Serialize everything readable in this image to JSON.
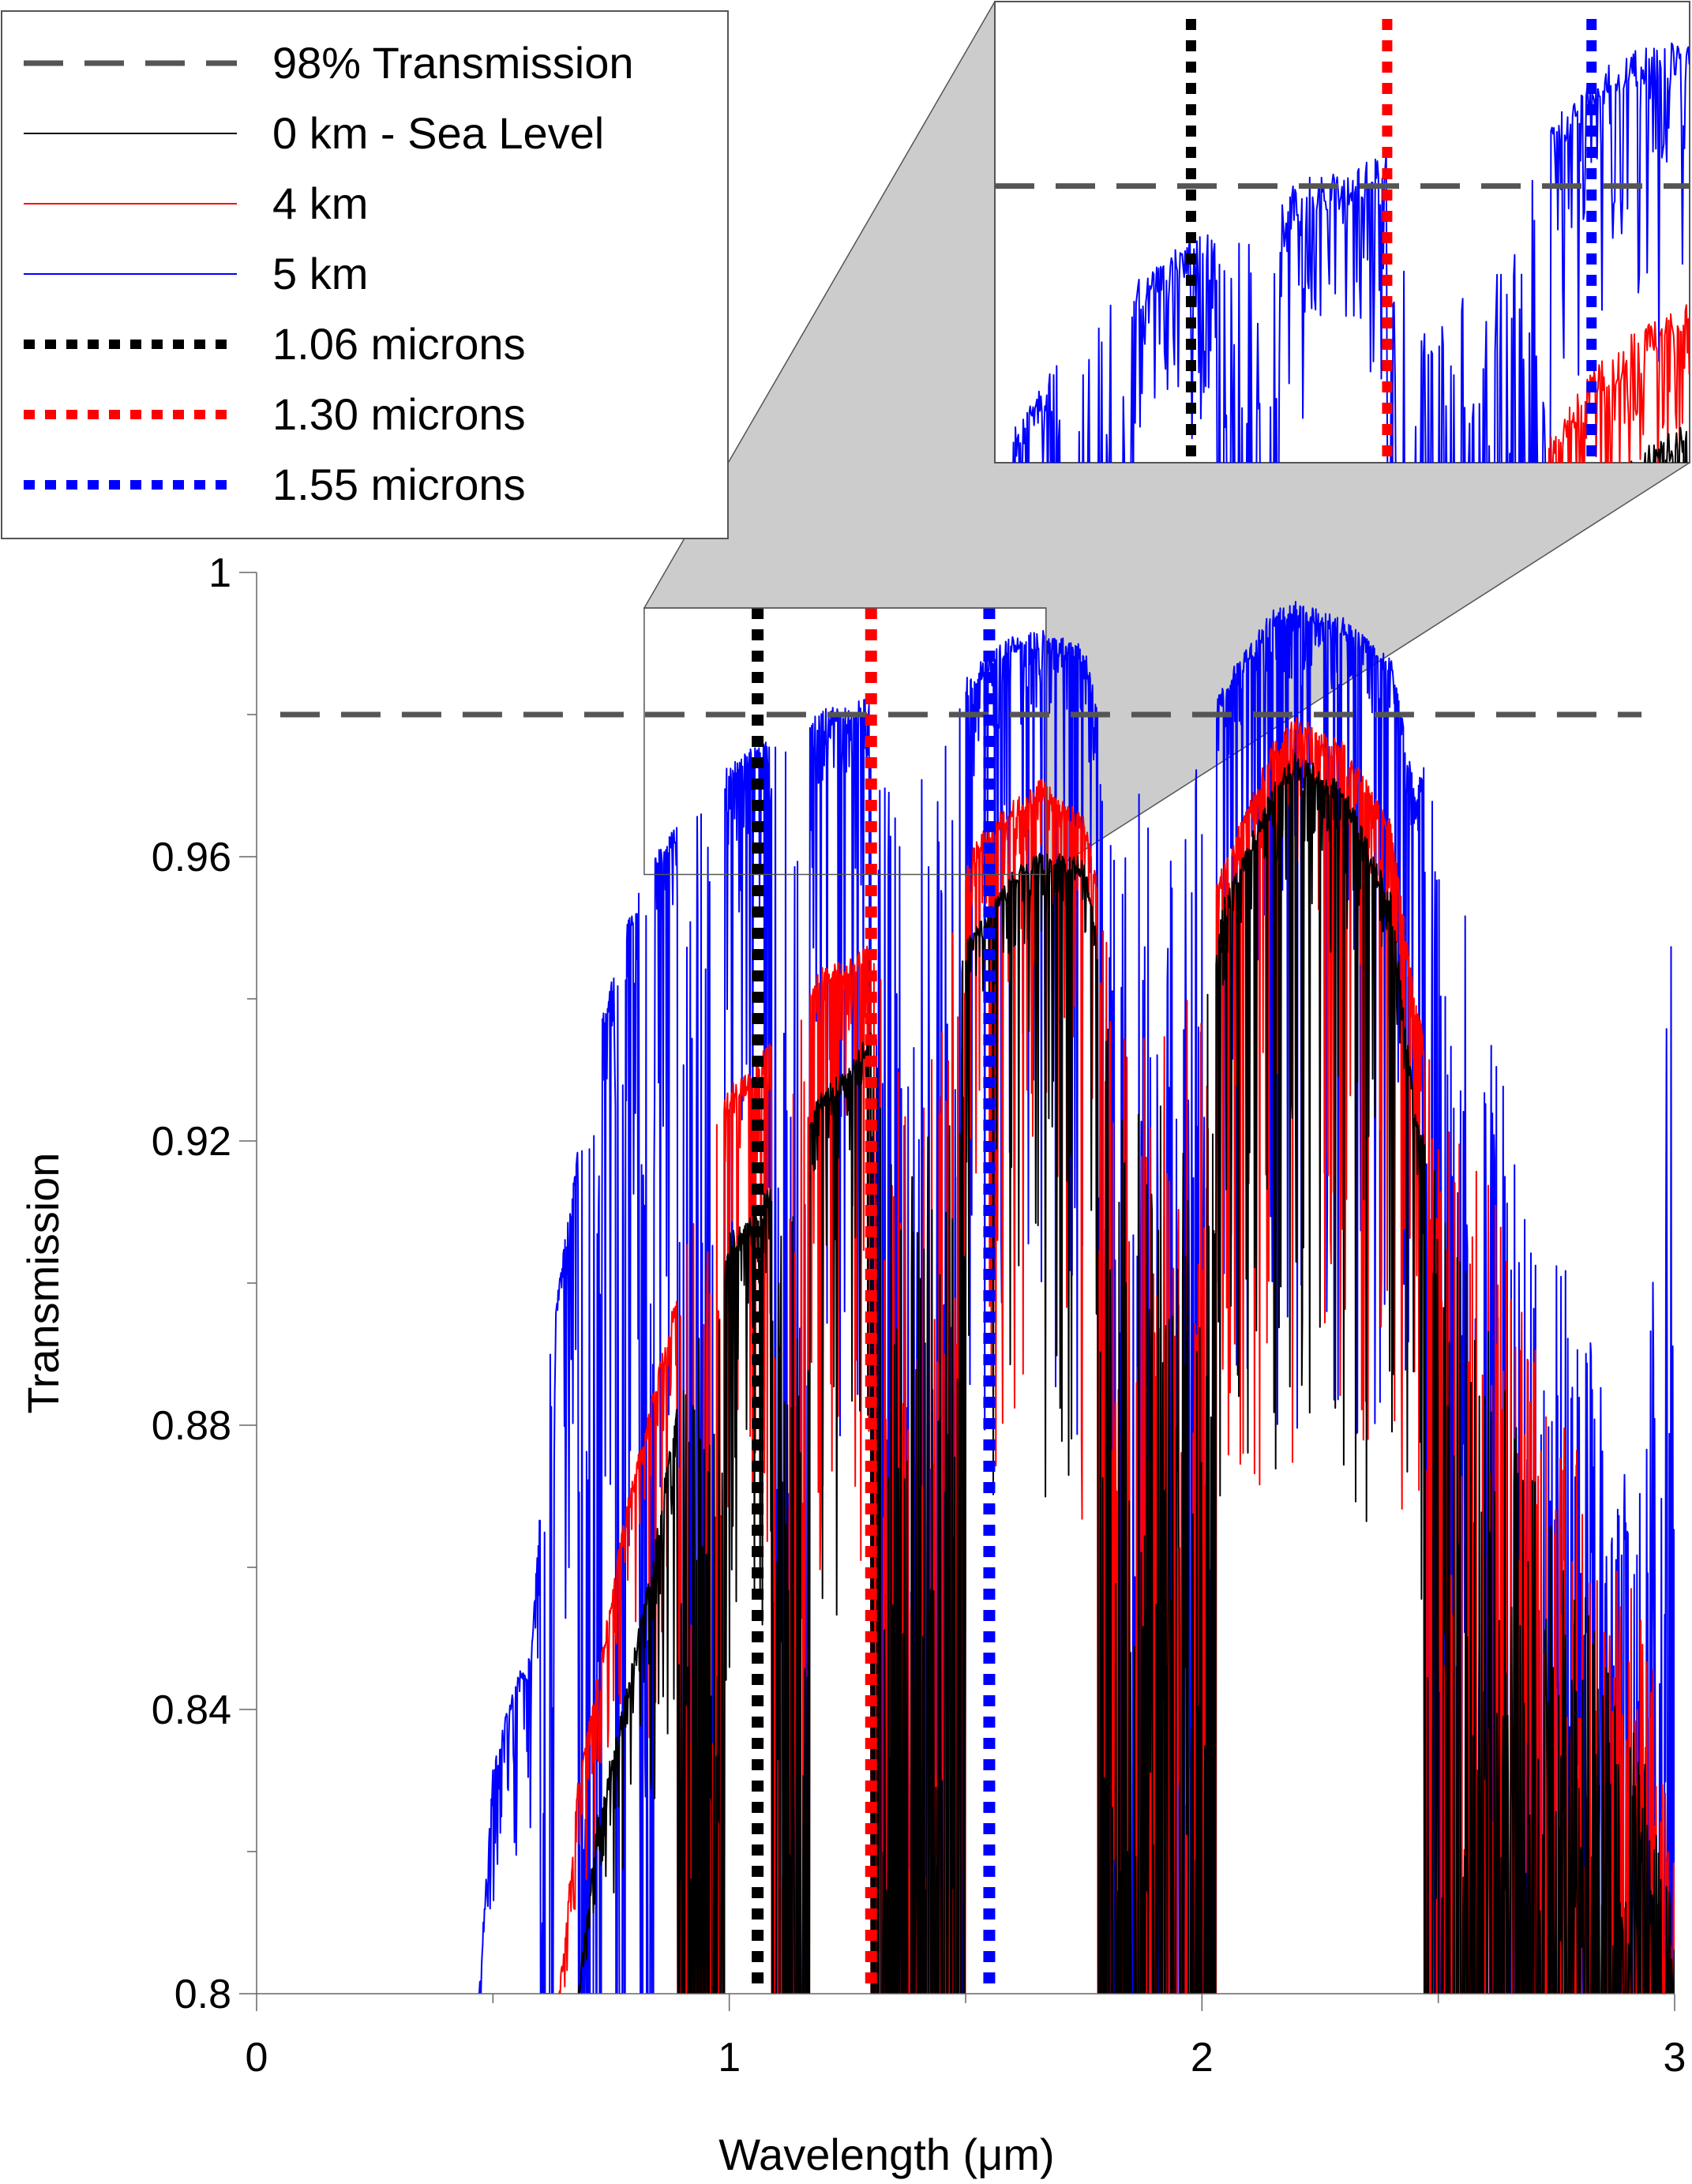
{
  "chart_data": {
    "type": "line",
    "xlabel": "Wavelength (μm)",
    "ylabel": "Transmission",
    "xlim": [
      0,
      3
    ],
    "ylim": [
      0.8,
      1.0
    ],
    "x_ticks": [
      0,
      1,
      2,
      3
    ],
    "x_tick_labels": [
      "0",
      "1",
      "2",
      "3"
    ],
    "y_ticks": [
      0.8,
      0.84,
      0.88,
      0.92,
      0.96,
      1.0
    ],
    "y_tick_labels": [
      "0.8",
      "0.84",
      "0.88",
      "0.92",
      "0.96",
      "1"
    ],
    "legend_position": "top-left",
    "legend": [
      {
        "label": "98% Transmission",
        "color": "#555555",
        "style": "dashed"
      },
      {
        "label": "0 km - Sea Level",
        "color": "#000000",
        "style": "solid"
      },
      {
        "label": "4 km",
        "color": "#ff0000",
        "style": "solid"
      },
      {
        "label": "5 km",
        "color": "#0000ff",
        "style": "solid"
      },
      {
        "label": "1.06 microns",
        "color": "#000000",
        "style": "dotted"
      },
      {
        "label": "1.30 microns",
        "color": "#ff0000",
        "style": "dotted"
      },
      {
        "label": "1.55 microns",
        "color": "#0000ff",
        "style": "dotted"
      }
    ],
    "reference_line": {
      "y": 0.98,
      "label": "98% Transmission"
    },
    "marker_lines": [
      {
        "x": 1.06,
        "label": "1.06 microns",
        "color": "#000000"
      },
      {
        "x": 1.3,
        "label": "1.30 microns",
        "color": "#ff0000"
      },
      {
        "x": 1.55,
        "label": "1.55 microns",
        "color": "#0000ff"
      }
    ],
    "inset": {
      "xlim": [
        0.82,
        1.67
      ],
      "ylim": [
        0.9575,
        0.995
      ]
    },
    "series": [
      {
        "name": "5 km",
        "color": "#0000ff",
        "envelope": [
          [
            0.47,
            0.8
          ],
          [
            0.5,
            0.832
          ],
          [
            0.55,
            0.845
          ],
          [
            0.58,
            0.848
          ],
          [
            0.62,
            0.89
          ],
          [
            0.67,
            0.915
          ],
          [
            0.72,
            0.935
          ],
          [
            0.77,
            0.948
          ],
          [
            0.82,
            0.958
          ],
          [
            0.87,
            0.963
          ],
          [
            0.9,
            0.966
          ],
          [
            0.95,
            0.97
          ],
          [
            1.0,
            0.973
          ],
          [
            1.04,
            0.975
          ],
          [
            1.1,
            0.977
          ],
          [
            1.15,
            0.978
          ],
          [
            1.2,
            0.981
          ],
          [
            1.25,
            0.981
          ],
          [
            1.3,
            0.983
          ],
          [
            1.35,
            0.968
          ],
          [
            1.45,
            0.975
          ],
          [
            1.5,
            0.985
          ],
          [
            1.55,
            0.989
          ],
          [
            1.6,
            0.991
          ],
          [
            1.66,
            0.992
          ],
          [
            1.75,
            0.99
          ],
          [
            1.8,
            0.975
          ],
          [
            1.95,
            0.97
          ],
          [
            2.05,
            0.985
          ],
          [
            2.15,
            0.995
          ],
          [
            2.2,
            0.996
          ],
          [
            2.3,
            0.994
          ],
          [
            2.4,
            0.988
          ],
          [
            2.45,
            0.97
          ],
          [
            2.52,
            0.98
          ],
          [
            2.58,
            0.94
          ],
          [
            2.93,
            0.87
          ],
          [
            3.0,
            0.96
          ]
        ],
        "absorption_bands": [
          [
            0.6,
            0.63
          ],
          [
            0.68,
            0.73
          ],
          [
            0.76,
            0.78
          ],
          [
            0.81,
            0.84
          ],
          [
            0.89,
            0.99
          ],
          [
            1.09,
            1.17
          ],
          [
            1.3,
            1.5
          ],
          [
            1.78,
            2.03
          ],
          [
            2.47,
            3.0
          ]
        ]
      },
      {
        "name": "4 km",
        "color": "#ff0000",
        "envelope": [
          [
            0.64,
            0.8
          ],
          [
            0.68,
            0.83
          ],
          [
            0.72,
            0.845
          ],
          [
            0.78,
            0.868
          ],
          [
            0.84,
            0.885
          ],
          [
            0.9,
            0.902
          ],
          [
            0.95,
            0.918
          ],
          [
            1.0,
            0.928
          ],
          [
            1.05,
            0.93
          ],
          [
            1.1,
            0.937
          ],
          [
            1.15,
            0.94
          ],
          [
            1.2,
            0.945
          ],
          [
            1.25,
            0.946
          ],
          [
            1.3,
            0.948
          ],
          [
            1.35,
            0.935
          ],
          [
            1.45,
            0.945
          ],
          [
            1.5,
            0.96
          ],
          [
            1.55,
            0.965
          ],
          [
            1.6,
            0.968
          ],
          [
            1.66,
            0.971
          ],
          [
            1.75,
            0.966
          ],
          [
            1.8,
            0.95
          ],
          [
            1.95,
            0.94
          ],
          [
            2.05,
            0.96
          ],
          [
            2.15,
            0.976
          ],
          [
            2.2,
            0.98
          ],
          [
            2.3,
            0.976
          ],
          [
            2.4,
            0.965
          ],
          [
            2.45,
            0.94
          ],
          [
            2.52,
            0.93
          ],
          [
            2.95,
            0.85
          ],
          [
            3.0,
            0.82
          ]
        ],
        "absorption_bands": [
          [
            0.89,
            0.99
          ],
          [
            1.09,
            1.17
          ],
          [
            1.3,
            1.5
          ],
          [
            1.78,
            2.03
          ],
          [
            2.47,
            3.0
          ]
        ]
      },
      {
        "name": "0 km - Sea Level",
        "color": "#000000",
        "envelope": [
          [
            0.68,
            0.8
          ],
          [
            0.72,
            0.825
          ],
          [
            0.78,
            0.842
          ],
          [
            0.84,
            0.862
          ],
          [
            0.88,
            0.88
          ],
          [
            0.92,
            0.892
          ],
          [
            0.97,
            0.902
          ],
          [
            1.0,
            0.907
          ],
          [
            1.05,
            0.91
          ],
          [
            1.1,
            0.916
          ],
          [
            1.15,
            0.922
          ],
          [
            1.2,
            0.928
          ],
          [
            1.25,
            0.93
          ],
          [
            1.3,
            0.936
          ],
          [
            1.35,
            0.915
          ],
          [
            1.45,
            0.935
          ],
          [
            1.5,
            0.948
          ],
          [
            1.55,
            0.953
          ],
          [
            1.6,
            0.958
          ],
          [
            1.66,
            0.961
          ],
          [
            1.75,
            0.96
          ],
          [
            1.8,
            0.94
          ],
          [
            1.95,
            0.92
          ],
          [
            2.05,
            0.955
          ],
          [
            2.15,
            0.97
          ],
          [
            2.2,
            0.975
          ],
          [
            2.3,
            0.97
          ],
          [
            2.4,
            0.955
          ],
          [
            2.45,
            0.925
          ],
          [
            2.52,
            0.91
          ],
          [
            2.95,
            0.83
          ],
          [
            3.0,
            0.81
          ]
        ],
        "absorption_bands": [
          [
            0.89,
            0.99
          ],
          [
            1.09,
            1.17
          ],
          [
            1.3,
            1.5
          ],
          [
            1.78,
            2.03
          ],
          [
            2.47,
            3.0
          ]
        ]
      }
    ]
  }
}
